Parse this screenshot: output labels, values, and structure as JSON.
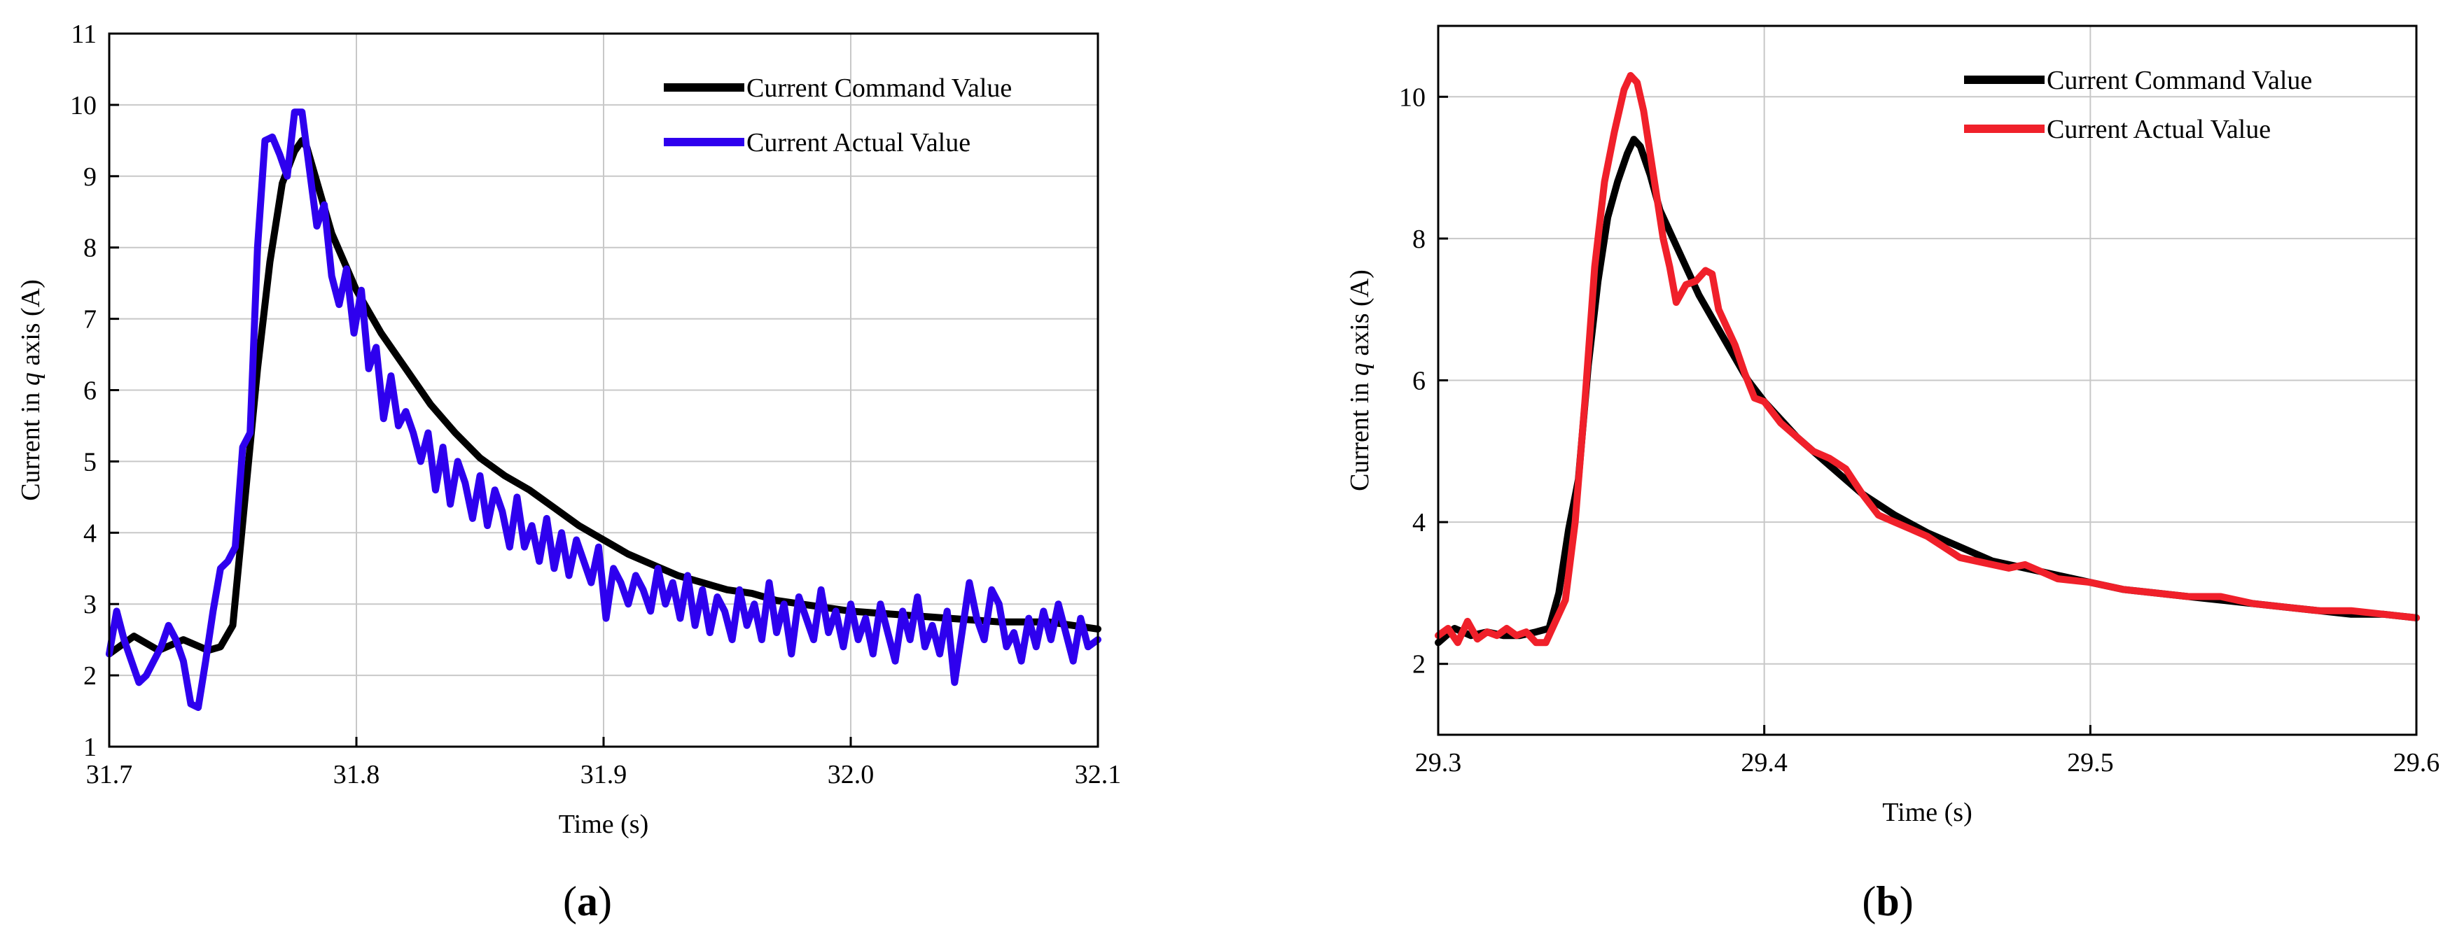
{
  "chart_data": [
    {
      "type": "line",
      "panel_label": "a",
      "xlabel": "Time (s)",
      "ylabel_parts": [
        "Current in ",
        "q",
        " axis (A)"
      ],
      "xlim": [
        31.7,
        32.1
      ],
      "ylim": [
        1,
        11
      ],
      "xticks": [
        31.7,
        31.8,
        31.9,
        32.0,
        32.1
      ],
      "xtick_labels": [
        "31.7",
        "31.8",
        "31.9",
        "32.0",
        "32.1"
      ],
      "yticks": [
        1,
        2,
        3,
        4,
        5,
        6,
        7,
        8,
        9,
        10,
        11
      ],
      "ytick_labels": [
        "1",
        "2",
        "3",
        "4",
        "5",
        "6",
        "7",
        "8",
        "9",
        "10",
        "11"
      ],
      "grid": true,
      "legend_position": "top-right",
      "series": [
        {
          "name": "Current Command Value",
          "color": "#000000",
          "x": [
            31.7,
            31.71,
            31.72,
            31.73,
            31.74,
            31.745,
            31.75,
            31.755,
            31.76,
            31.765,
            31.77,
            31.775,
            31.778,
            31.78,
            31.785,
            31.79,
            31.8,
            31.81,
            31.82,
            31.83,
            31.84,
            31.85,
            31.86,
            31.87,
            31.88,
            31.89,
            31.9,
            31.91,
            31.92,
            31.93,
            31.94,
            31.95,
            31.96,
            31.97,
            31.98,
            31.99,
            32.0,
            32.02,
            32.04,
            32.06,
            32.08,
            32.1
          ],
          "y": [
            2.3,
            2.55,
            2.35,
            2.5,
            2.35,
            2.4,
            2.7,
            4.5,
            6.3,
            7.8,
            8.9,
            9.35,
            9.5,
            9.4,
            8.8,
            8.2,
            7.4,
            6.8,
            6.3,
            5.8,
            5.4,
            5.05,
            4.8,
            4.6,
            4.35,
            4.1,
            3.9,
            3.7,
            3.55,
            3.4,
            3.3,
            3.2,
            3.15,
            3.05,
            3.0,
            2.95,
            2.9,
            2.85,
            2.8,
            2.75,
            2.75,
            2.65
          ]
        },
        {
          "name": "Current Actual Value",
          "color": "#2e00ee",
          "x": [
            31.7,
            31.703,
            31.706,
            31.709,
            31.712,
            31.715,
            31.718,
            31.721,
            31.724,
            31.727,
            31.73,
            31.733,
            31.736,
            31.739,
            31.742,
            31.745,
            31.748,
            31.751,
            31.754,
            31.757,
            31.76,
            31.763,
            31.766,
            31.769,
            31.772,
            31.775,
            31.778,
            31.781,
            31.784,
            31.787,
            31.79,
            31.793,
            31.796,
            31.799,
            31.802,
            31.805,
            31.808,
            31.811,
            31.814,
            31.817,
            31.82,
            31.823,
            31.826,
            31.829,
            31.832,
            31.835,
            31.838,
            31.841,
            31.844,
            31.847,
            31.85,
            31.853,
            31.856,
            31.859,
            31.862,
            31.865,
            31.868,
            31.871,
            31.874,
            31.877,
            31.88,
            31.883,
            31.886,
            31.889,
            31.892,
            31.895,
            31.898,
            31.901,
            31.904,
            31.907,
            31.91,
            31.913,
            31.916,
            31.919,
            31.922,
            31.925,
            31.928,
            31.931,
            31.934,
            31.937,
            31.94,
            31.943,
            31.946,
            31.949,
            31.952,
            31.955,
            31.958,
            31.961,
            31.964,
            31.967,
            31.97,
            31.973,
            31.976,
            31.979,
            31.982,
            31.985,
            31.988,
            31.991,
            31.994,
            31.997,
            32.0,
            32.003,
            32.006,
            32.009,
            32.012,
            32.015,
            32.018,
            32.021,
            32.024,
            32.027,
            32.03,
            32.033,
            32.036,
            32.039,
            32.042,
            32.045,
            32.048,
            32.051,
            32.054,
            32.057,
            32.06,
            32.063,
            32.066,
            32.069,
            32.072,
            32.075,
            32.078,
            32.081,
            32.084,
            32.087,
            32.09,
            32.093,
            32.096,
            32.1
          ],
          "y": [
            2.3,
            2.9,
            2.5,
            2.2,
            1.9,
            2.0,
            2.2,
            2.4,
            2.7,
            2.5,
            2.2,
            1.6,
            1.55,
            2.2,
            2.9,
            3.5,
            3.6,
            3.8,
            5.2,
            5.4,
            8.0,
            9.5,
            9.55,
            9.3,
            9.0,
            9.9,
            9.9,
            9.1,
            8.3,
            8.6,
            7.6,
            7.2,
            7.7,
            6.8,
            7.4,
            6.3,
            6.6,
            5.6,
            6.2,
            5.5,
            5.7,
            5.4,
            5.0,
            5.4,
            4.6,
            5.2,
            4.4,
            5.0,
            4.7,
            4.2,
            4.8,
            4.1,
            4.6,
            4.3,
            3.8,
            4.5,
            3.8,
            4.1,
            3.6,
            4.2,
            3.5,
            4.0,
            3.4,
            3.9,
            3.6,
            3.3,
            3.8,
            2.8,
            3.5,
            3.3,
            3.0,
            3.4,
            3.2,
            2.9,
            3.5,
            3.0,
            3.3,
            2.8,
            3.4,
            2.7,
            3.2,
            2.6,
            3.1,
            2.9,
            2.5,
            3.2,
            2.7,
            3.0,
            2.5,
            3.3,
            2.6,
            3.0,
            2.3,
            3.1,
            2.8,
            2.5,
            3.2,
            2.6,
            2.9,
            2.4,
            3.0,
            2.5,
            2.8,
            2.3,
            3.0,
            2.6,
            2.2,
            2.9,
            2.5,
            3.1,
            2.4,
            2.7,
            2.3,
            2.9,
            1.9,
            2.6,
            3.3,
            2.8,
            2.5,
            3.2,
            3.0,
            2.4,
            2.6,
            2.2,
            2.8,
            2.4,
            2.9,
            2.5,
            3.0,
            2.6,
            2.2,
            2.8,
            2.4,
            2.5
          ]
        }
      ]
    },
    {
      "type": "line",
      "panel_label": "b",
      "xlabel": "Time (s)",
      "ylabel_parts": [
        "Current in ",
        "q",
        " axis (A)"
      ],
      "xlim": [
        29.3,
        29.6
      ],
      "ylim": [
        1,
        11
      ],
      "xticks": [
        29.3,
        29.4,
        29.5,
        29.6
      ],
      "xtick_labels": [
        "29.3",
        "29.4",
        "29.5",
        "29.6"
      ],
      "yticks": [
        2,
        4,
        6,
        8,
        10
      ],
      "ytick_labels": [
        "2",
        "4",
        "6",
        "8",
        "10"
      ],
      "grid": true,
      "legend_position": "top-right",
      "series": [
        {
          "name": "Current Command Value",
          "color": "#000000",
          "x": [
            29.3,
            29.305,
            29.31,
            29.315,
            29.32,
            29.325,
            29.33,
            29.334,
            29.337,
            29.34,
            29.343,
            29.346,
            29.349,
            29.352,
            29.355,
            29.358,
            29.36,
            29.362,
            29.365,
            29.368,
            29.372,
            29.376,
            29.38,
            29.385,
            29.39,
            29.395,
            29.4,
            29.41,
            29.42,
            29.43,
            29.44,
            29.45,
            29.46,
            29.47,
            29.48,
            29.49,
            29.5,
            29.51,
            29.52,
            29.53,
            29.54,
            29.55,
            29.56,
            29.57,
            29.58,
            29.59,
            29.6
          ],
          "y": [
            2.3,
            2.5,
            2.4,
            2.45,
            2.4,
            2.4,
            2.45,
            2.5,
            3.0,
            3.9,
            4.6,
            6.2,
            7.4,
            8.3,
            8.8,
            9.2,
            9.4,
            9.3,
            8.9,
            8.4,
            8.0,
            7.6,
            7.2,
            6.8,
            6.4,
            6.0,
            5.7,
            5.2,
            4.8,
            4.4,
            4.1,
            3.85,
            3.65,
            3.45,
            3.35,
            3.25,
            3.15,
            3.05,
            3.0,
            2.95,
            2.9,
            2.85,
            2.8,
            2.75,
            2.7,
            2.7,
            2.65
          ]
        },
        {
          "name": "Current Actual Value",
          "color": "#f0202a",
          "x": [
            29.3,
            29.303,
            29.306,
            29.309,
            29.312,
            29.315,
            29.318,
            29.321,
            29.324,
            29.327,
            29.33,
            29.333,
            29.336,
            29.339,
            29.342,
            29.345,
            29.348,
            29.351,
            29.354,
            29.357,
            29.359,
            29.361,
            29.363,
            29.365,
            29.367,
            29.369,
            29.371,
            29.373,
            29.376,
            29.379,
            29.382,
            29.384,
            29.386,
            29.388,
            29.391,
            29.394,
            29.397,
            29.4,
            29.405,
            29.41,
            29.415,
            29.42,
            29.425,
            29.43,
            29.435,
            29.44,
            29.445,
            29.45,
            29.455,
            29.46,
            29.465,
            29.47,
            29.475,
            29.48,
            29.485,
            29.49,
            29.5,
            29.51,
            29.52,
            29.53,
            29.54,
            29.55,
            29.56,
            29.57,
            29.58,
            29.59,
            29.6
          ],
          "y": [
            2.4,
            2.5,
            2.3,
            2.6,
            2.35,
            2.45,
            2.4,
            2.5,
            2.4,
            2.45,
            2.3,
            2.3,
            2.6,
            2.9,
            4.0,
            5.7,
            7.6,
            8.8,
            9.5,
            10.1,
            10.3,
            10.2,
            9.8,
            9.2,
            8.6,
            8.0,
            7.6,
            7.1,
            7.35,
            7.4,
            7.55,
            7.5,
            7.0,
            6.8,
            6.5,
            6.1,
            5.75,
            5.7,
            5.4,
            5.2,
            5.0,
            4.9,
            4.75,
            4.4,
            4.1,
            4.0,
            3.9,
            3.8,
            3.65,
            3.5,
            3.45,
            3.4,
            3.35,
            3.4,
            3.3,
            3.2,
            3.15,
            3.05,
            3.0,
            2.95,
            2.95,
            2.85,
            2.8,
            2.75,
            2.75,
            2.7,
            2.65
          ]
        }
      ]
    }
  ]
}
